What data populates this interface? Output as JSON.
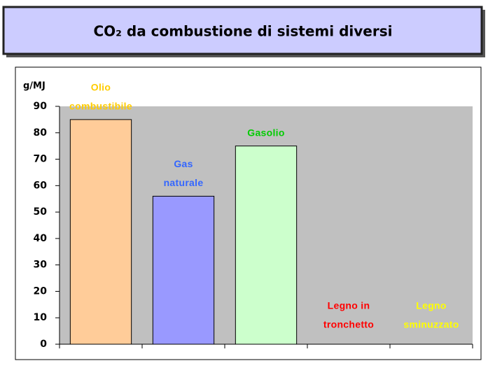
{
  "chart_data": {
    "type": "bar",
    "title": "CO₂ da combustione di sistemi diversi",
    "ylabel": "g/MJ",
    "categories": [
      [
        "Olio",
        "combustibile"
      ],
      [
        "Gas",
        "naturale"
      ],
      [
        "Gasolio"
      ],
      [
        "Legno in",
        "tronchetto"
      ],
      [
        "Legno",
        "sminuzzato"
      ]
    ],
    "values": [
      85,
      56,
      75,
      null,
      null
    ],
    "colors": [
      "#ffcc99",
      "#9999ff",
      "#ccffcc",
      "#ffffff",
      "#ffffff"
    ],
    "label_colors": [
      "#ffcc00",
      "#3366ff",
      "#00cc00",
      "#ff0000",
      "#ffff00"
    ],
    "plot_background": "#c0c0c0",
    "ylim": [
      0,
      90
    ],
    "yticks": [
      0,
      10,
      20,
      30,
      40,
      50,
      60,
      70,
      80,
      90
    ],
    "grid": false
  }
}
